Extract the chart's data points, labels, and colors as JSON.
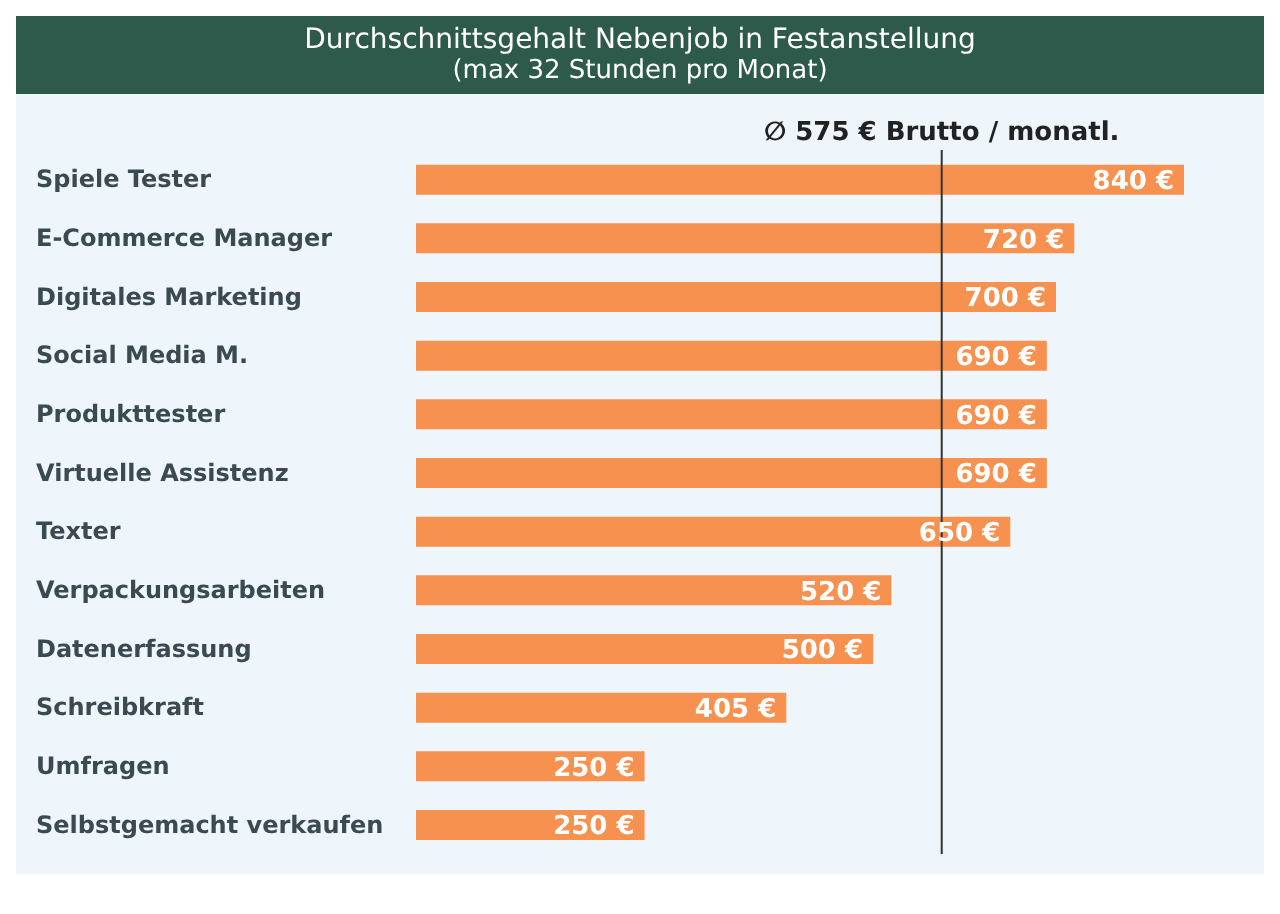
{
  "chart_data": {
    "type": "bar",
    "orientation": "horizontal",
    "title": "Durchschnittsgehalt Nebenjob in Festanstellung",
    "subtitle": "(max 32 Stunden pro Monat)",
    "categories": [
      "Spiele Tester",
      "E-Commerce Manager",
      "Digitales Marketing",
      "Social Media M.",
      "Produkttester",
      "Virtuelle Assistenz",
      "Texter",
      "Verpackungsarbeiten",
      "Datenerfassung",
      "Schreibkraft",
      "Umfragen",
      "Selbstgemacht verkaufen"
    ],
    "values": [
      840,
      720,
      700,
      690,
      690,
      690,
      650,
      520,
      500,
      405,
      250,
      250
    ],
    "value_labels": [
      "840 €",
      "720 €",
      "700 €",
      "690 €",
      "690 €",
      "690 €",
      "650 €",
      "520 €",
      "500 €",
      "405 €",
      "250 €",
      "250 €"
    ],
    "color": "#f7914f",
    "ref_lines": [
      {
        "axis": "x",
        "value": 575,
        "label": "∅ 575 € Brutto / monatl.",
        "color": "#333333"
      }
    ],
    "grid": false,
    "legend": false
  }
}
